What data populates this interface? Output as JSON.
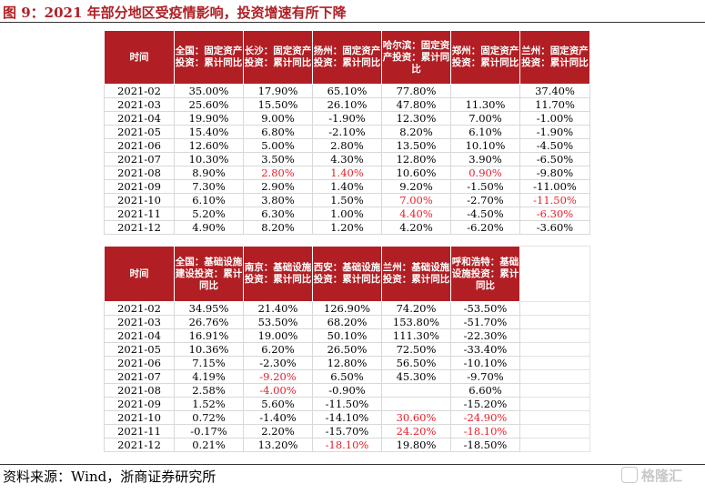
{
  "title": "图 9：2021 年部分地区受疫情影响，投资增速有所下降",
  "source": "资料来源：Wind，浙商证券研究所",
  "watermark": "格隆汇",
  "table1": {
    "headers": [
      "时间",
      "全国：固定资产投资：累计同比",
      "长沙：固定资产投资：累计同比",
      "扬州：固定资产投资：累计同比",
      "哈尔滨：固定资产投资：累计同比",
      "郑州：固定资产投资：累计同比",
      "兰州：固定资产投资：累计同比"
    ],
    "rows": [
      [
        "2021-02",
        "35.00%",
        "17.90%",
        "65.10%",
        "77.80%",
        "",
        "37.40%"
      ],
      [
        "2021-03",
        "25.60%",
        "15.50%",
        "26.10%",
        "47.80%",
        "11.30%",
        "11.70%"
      ],
      [
        "2021-04",
        "19.90%",
        "9.00%",
        "-1.90%",
        "12.30%",
        "7.00%",
        "-1.00%"
      ],
      [
        "2021-05",
        "15.40%",
        "6.80%",
        "-2.10%",
        "8.20%",
        "6.10%",
        "-1.90%"
      ],
      [
        "2021-06",
        "12.60%",
        "5.00%",
        "2.80%",
        "13.50%",
        "10.10%",
        "-4.50%"
      ],
      [
        "2021-07",
        "10.30%",
        "3.50%",
        "4.30%",
        "12.80%",
        "3.90%",
        "-6.50%"
      ],
      [
        "2021-08",
        "8.90%",
        "2.80%",
        "1.40%",
        "10.60%",
        "0.90%",
        "-9.80%"
      ],
      [
        "2021-09",
        "7.30%",
        "2.90%",
        "1.40%",
        "9.20%",
        "-1.50%",
        "-11.00%"
      ],
      [
        "2021-10",
        "6.10%",
        "3.80%",
        "1.50%",
        "7.00%",
        "-2.70%",
        "-11.50%"
      ],
      [
        "2021-11",
        "5.20%",
        "6.30%",
        "1.00%",
        "4.40%",
        "-4.50%",
        "-6.30%"
      ],
      [
        "2021-12",
        "4.90%",
        "8.20%",
        "1.20%",
        "4.20%",
        "-6.20%",
        "-3.60%"
      ]
    ],
    "highlighted": [
      [
        6,
        2
      ],
      [
        6,
        3
      ],
      [
        6,
        5
      ],
      [
        8,
        4
      ],
      [
        8,
        6
      ],
      [
        9,
        4
      ],
      [
        9,
        6
      ]
    ],
    "highlight_color": "#e8202a",
    "header_color": "#b11f24"
  },
  "table2": {
    "headers": [
      "时间",
      "全国：基础设施建设投资：累计同比",
      "南京：基础设施投资：累计同比",
      "西安：基础设施投资：累计同比",
      "兰州：基础设施投资：累计同比",
      "呼和浩特：基础设施投资：累计同比",
      ""
    ],
    "rows": [
      [
        "2021-02",
        "34.95%",
        "21.40%",
        "126.90%",
        "74.20%",
        "-53.50%",
        ""
      ],
      [
        "2021-03",
        "26.76%",
        "53.50%",
        "68.20%",
        "153.80%",
        "-51.70%",
        ""
      ],
      [
        "2021-04",
        "16.91%",
        "19.00%",
        "50.10%",
        "111.30%",
        "-22.30%",
        ""
      ],
      [
        "2021-05",
        "10.36%",
        "6.20%",
        "26.50%",
        "72.50%",
        "-33.40%",
        ""
      ],
      [
        "2021-06",
        "7.15%",
        "-2.30%",
        "12.80%",
        "56.50%",
        "-10.10%",
        ""
      ],
      [
        "2021-07",
        "4.19%",
        "-9.20%",
        "6.50%",
        "45.30%",
        "-9.70%",
        ""
      ],
      [
        "2021-08",
        "2.58%",
        "-4.00%",
        "-0.90%",
        "",
        "6.60%",
        ""
      ],
      [
        "2021-09",
        "1.52%",
        "5.60%",
        "-11.50%",
        "",
        "-15.20%",
        ""
      ],
      [
        "2021-10",
        "0.72%",
        "-1.40%",
        "-14.10%",
        "30.60%",
        "-24.90%",
        ""
      ],
      [
        "2021-11",
        "-0.17%",
        "2.20%",
        "-15.70%",
        "24.20%",
        "-18.10%",
        ""
      ],
      [
        "2021-12",
        "0.21%",
        "13.20%",
        "-18.10%",
        "19.80%",
        "-18.50%",
        ""
      ]
    ],
    "highlighted": [
      [
        5,
        2
      ],
      [
        6,
        2
      ],
      [
        8,
        4
      ],
      [
        8,
        5
      ],
      [
        9,
        4
      ],
      [
        9,
        5
      ],
      [
        10,
        3
      ]
    ],
    "highlight_color": "#e8202a",
    "header_color": "#b11f24"
  }
}
